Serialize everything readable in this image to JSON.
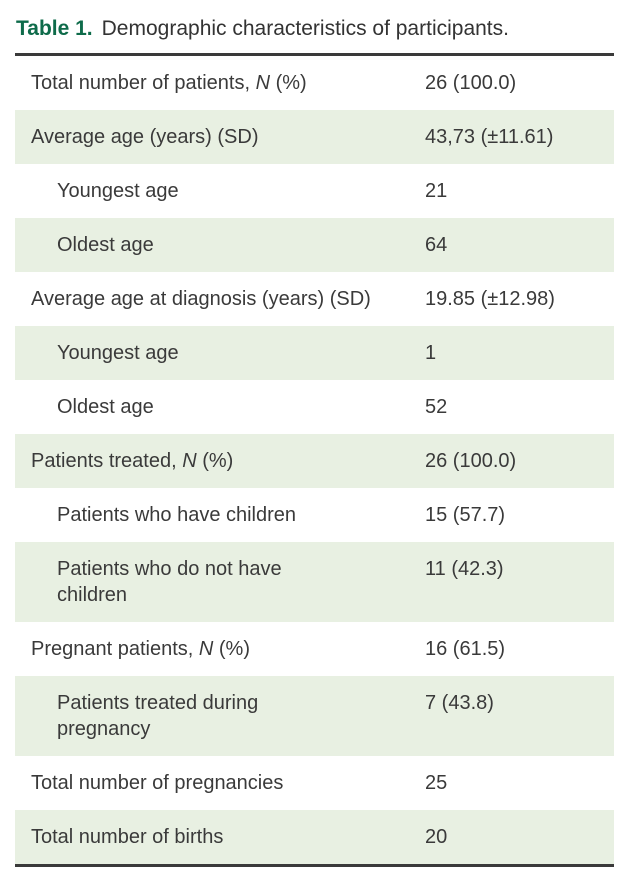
{
  "title": {
    "prefix": "Table 1.",
    "text": "Demographic characteristics of participants."
  },
  "colors": {
    "accent_green": "#0e6b4a",
    "row_shade_green": "#e8f0e2",
    "text": "#3a3a3a",
    "rule": "#3a3a3a"
  },
  "table": {
    "rows": [
      {
        "label": "Total number of patients, ",
        "italic": "N",
        "label_after": " (%)",
        "value": "26 (100.0)",
        "indent": false,
        "shaded": false
      },
      {
        "label": "Average age (years) (SD)",
        "italic": "",
        "label_after": "",
        "value": "43,73 (±11.61)",
        "indent": false,
        "shaded": true
      },
      {
        "label": "Youngest age",
        "italic": "",
        "label_after": "",
        "value": "21",
        "indent": true,
        "shaded": false
      },
      {
        "label": "Oldest age",
        "italic": "",
        "label_after": "",
        "value": "64",
        "indent": true,
        "shaded": true
      },
      {
        "label": "Average age at diagnosis (years) (SD)",
        "italic": "",
        "label_after": "",
        "value": "19.85 (±12.98)",
        "indent": false,
        "shaded": false
      },
      {
        "label": "Youngest age",
        "italic": "",
        "label_after": "",
        "value": "1",
        "indent": true,
        "shaded": true
      },
      {
        "label": "Oldest age",
        "italic": "",
        "label_after": "",
        "value": "52",
        "indent": true,
        "shaded": false
      },
      {
        "label": "Patients treated, ",
        "italic": "N",
        "label_after": " (%)",
        "value": "26 (100.0)",
        "indent": false,
        "shaded": true
      },
      {
        "label": "Patients who have children",
        "italic": "",
        "label_after": "",
        "value": "15 (57.7)",
        "indent": true,
        "shaded": false
      },
      {
        "label": "Patients who do not have\nchildren",
        "italic": "",
        "label_after": "",
        "value": "11 (42.3)",
        "indent": true,
        "shaded": true
      },
      {
        "label": "Pregnant patients, ",
        "italic": "N",
        "label_after": " (%)",
        "value": "16 (61.5)",
        "indent": false,
        "shaded": false
      },
      {
        "label": "Patients treated during\npregnancy",
        "italic": "",
        "label_after": "",
        "value": "7 (43.8)",
        "indent": true,
        "shaded": true
      },
      {
        "label": "Total number of pregnancies",
        "italic": "",
        "label_after": "",
        "value": "25",
        "indent": false,
        "shaded": false
      },
      {
        "label": "Total number of births",
        "italic": "",
        "label_after": "",
        "value": "20",
        "indent": false,
        "shaded": true
      }
    ]
  }
}
